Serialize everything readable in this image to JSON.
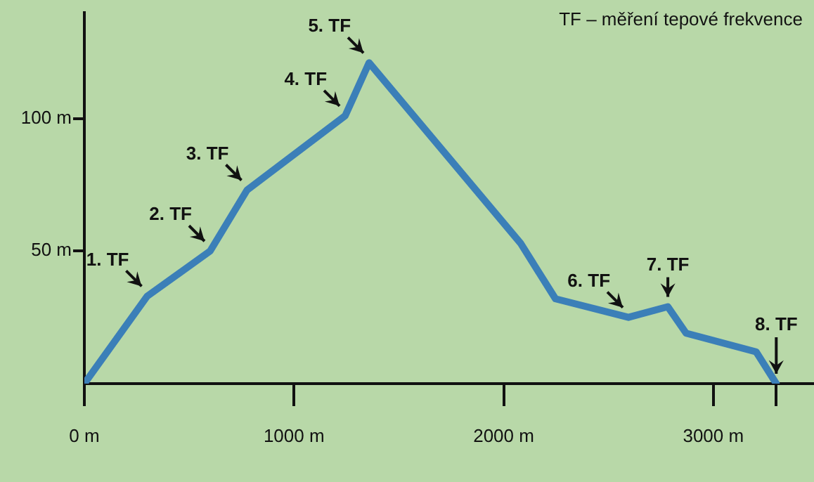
{
  "chart_data": {
    "type": "line",
    "x": [
      0,
      300,
      600,
      776,
      1244,
      1358,
      2080,
      2247,
      2595,
      2783,
      2870,
      3204,
      3300
    ],
    "series": [
      {
        "color": "#3b7fb8",
        "values": [
          0,
          33,
          50,
          73,
          101,
          121,
          53,
          32,
          25,
          29,
          19,
          12,
          0
        ]
      }
    ],
    "xlim": [
      0,
      3480
    ],
    "ylim": [
      0,
      140
    ],
    "xticks": [
      {
        "value": 0,
        "label": "0 m"
      },
      {
        "value": 1000,
        "label": "1000 m"
      },
      {
        "value": 2000,
        "label": "2000 m"
      },
      {
        "value": 3000,
        "label": "3000 m"
      },
      {
        "value": 3300,
        "label": null
      }
    ],
    "yticks": [
      {
        "value": 50,
        "label": "50 m"
      },
      {
        "value": 100,
        "label": "100 m"
      }
    ],
    "grid": false,
    "legend": false,
    "marker": "none",
    "line_style": "solid",
    "annotations": [
      "TF – měření tepové frekvence",
      {
        "text": "1. TF",
        "x": 300,
        "y": 33
      },
      {
        "text": "2. TF",
        "x": 600,
        "y": 50
      },
      {
        "text": "3. TF",
        "x": 776,
        "y": 73
      },
      {
        "text": "4. TF",
        "x": 1244,
        "y": 101
      },
      {
        "text": "5. TF",
        "x": 1358,
        "y": 121
      },
      {
        "text": "6. TF",
        "x": 2595,
        "y": 25
      },
      {
        "text": "7. TF",
        "x": 2783,
        "y": 29
      },
      {
        "text": "8. TF",
        "x": 3300,
        "y": 0
      }
    ]
  }
}
